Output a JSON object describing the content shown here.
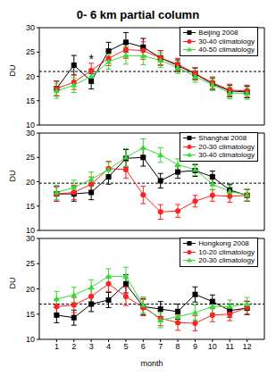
{
  "title": "0- 6 km partial column",
  "chart_data": [
    {
      "type": "line",
      "ylabel": "DU",
      "x": [
        1,
        2,
        3,
        4,
        5,
        6,
        7,
        8,
        9,
        10,
        11,
        12
      ],
      "xlim": [
        0,
        13
      ],
      "xticks": [
        1,
        2,
        3,
        4,
        5,
        6,
        7,
        8,
        9,
        10,
        11,
        12
      ],
      "ylim": [
        10,
        30
      ],
      "yticks": [
        10,
        15,
        20,
        25,
        30
      ],
      "tick_labels": "y",
      "legend": "upper right",
      "reference_line": 21,
      "annotations": [
        {
          "text": "*",
          "x": 3,
          "y": 23.5
        }
      ],
      "series": [
        {
          "name": "Beijing 2008",
          "color": "#000000",
          "marker": "square",
          "line_style": "solid",
          "values": [
            17.5,
            22.3,
            19,
            25.2,
            27,
            26,
            23.8,
            22.2,
            20.5,
            18.5,
            17,
            16.8
          ],
          "errors": [
            1.5,
            2,
            1.6,
            1.8,
            2,
            1.8,
            1.5,
            1.2,
            1.2,
            1.2,
            1.2,
            1.2
          ]
        },
        {
          "name": "30-40 climatology",
          "color": "#ff2020",
          "marker": "circle",
          "line_style": "solid",
          "values": [
            17.5,
            18.8,
            21.2,
            23.7,
            25.5,
            25.3,
            23.8,
            22.5,
            20.6,
            18.7,
            17.2,
            17
          ],
          "errors": [
            1.5,
            1.5,
            1.5,
            1.5,
            1.8,
            1.8,
            1.5,
            1.2,
            1.2,
            1.2,
            1.2,
            1.2
          ]
        },
        {
          "name": "40-50 climatology",
          "color": "#33dd33",
          "marker": "triangle",
          "line_style": "solid",
          "values": [
            17,
            18.2,
            20,
            23,
            24.3,
            24.2,
            23.3,
            21.8,
            20,
            18.3,
            16.6,
            16.5
          ],
          "errors": [
            1.5,
            1.5,
            1.5,
            1.5,
            1.8,
            1.8,
            1.5,
            1.2,
            1.2,
            1.2,
            1.2,
            1.2
          ]
        }
      ]
    },
    {
      "type": "line",
      "ylabel": "DU",
      "x": [
        1,
        2,
        3,
        4,
        5,
        6,
        7,
        8,
        9,
        10,
        11,
        12
      ],
      "xlim": [
        0,
        13
      ],
      "xticks": [
        1,
        2,
        3,
        4,
        5,
        6,
        7,
        8,
        9,
        10,
        11,
        12
      ],
      "ylim": [
        10,
        30
      ],
      "yticks": [
        10,
        15,
        20,
        25,
        30
      ],
      "tick_labels": "y",
      "legend": "upper right",
      "reference_line": 19.7,
      "series": [
        {
          "name": "Shanghai 2008",
          "color": "#000000",
          "marker": "square",
          "line_style": "solid",
          "values": [
            17.5,
            17.5,
            17.8,
            21,
            24.8,
            25,
            20.2,
            22,
            22.3,
            21,
            18.3,
            17.2
          ],
          "errors": [
            1.5,
            1.5,
            1.5,
            1.5,
            1.8,
            1.8,
            1.5,
            1.3,
            1.2,
            1.2,
            1.2,
            1.2
          ]
        },
        {
          "name": "20-30 climatology",
          "color": "#ff2020",
          "marker": "circle",
          "line_style": "solid",
          "values": [
            17.5,
            17.8,
            19.5,
            22.7,
            22.5,
            17.3,
            13.8,
            14,
            16,
            17.2,
            17,
            17.2
          ],
          "errors": [
            1.5,
            1.5,
            1.5,
            1.5,
            1.8,
            1.8,
            1.5,
            1.3,
            1.2,
            1.2,
            1.2,
            1.2
          ]
        },
        {
          "name": "30-40 climatology",
          "color": "#33dd33",
          "marker": "triangle",
          "line_style": "solid",
          "values": [
            17.8,
            18.8,
            20.5,
            22.5,
            25,
            27,
            25.5,
            23.5,
            22.5,
            19.5,
            18,
            17.3
          ],
          "errors": [
            1.5,
            1.5,
            1.5,
            1.5,
            1.8,
            1.8,
            1.5,
            1.2,
            1.2,
            1.2,
            1.2,
            1.2
          ]
        }
      ]
    },
    {
      "type": "line",
      "xlabel": "month",
      "ylabel": "DU",
      "x": [
        1,
        2,
        3,
        4,
        5,
        6,
        7,
        8,
        9,
        10,
        11,
        12
      ],
      "xlim": [
        0,
        13
      ],
      "xticks": [
        1,
        2,
        3,
        4,
        5,
        6,
        7,
        8,
        9,
        10,
        11,
        12
      ],
      "ylim": [
        10,
        30
      ],
      "yticks": [
        10,
        15,
        20,
        25,
        30
      ],
      "legend": "upper right",
      "reference_line": 17,
      "series": [
        {
          "name": "Hongkong 2008",
          "color": "#000000",
          "marker": "square",
          "line_style": "solid",
          "values": [
            14.8,
            14.3,
            17,
            17.8,
            21,
            16.5,
            16,
            15.5,
            18.9,
            17.5,
            15.7,
            16.2
          ],
          "errors": [
            1.5,
            1.5,
            1.5,
            1.5,
            1.8,
            1.6,
            1.5,
            1.5,
            1.5,
            1.3,
            1.3,
            1.3
          ]
        },
        {
          "name": "10-20 climatology",
          "color": "#ff2020",
          "marker": "circle",
          "line_style": "solid",
          "values": [
            16.5,
            16.8,
            18.5,
            21,
            18.5,
            16.3,
            14.2,
            13.3,
            13.2,
            14.8,
            15,
            16.3
          ],
          "errors": [
            1.5,
            1.5,
            1.5,
            1.5,
            1.8,
            1.6,
            1.5,
            1.5,
            1.5,
            1.3,
            1.3,
            1.3
          ]
        },
        {
          "name": "20-30 climatology",
          "color": "#33dd33",
          "marker": "triangle",
          "line_style": "solid",
          "values": [
            18,
            18.8,
            20.3,
            22.5,
            22.5,
            16.8,
            13.8,
            14.5,
            15.3,
            16.5,
            16.5,
            17
          ],
          "errors": [
            1.5,
            1.5,
            1.5,
            1.5,
            1.8,
            1.6,
            1.5,
            1.5,
            1.5,
            1.3,
            1.3,
            1.3
          ]
        }
      ]
    }
  ]
}
